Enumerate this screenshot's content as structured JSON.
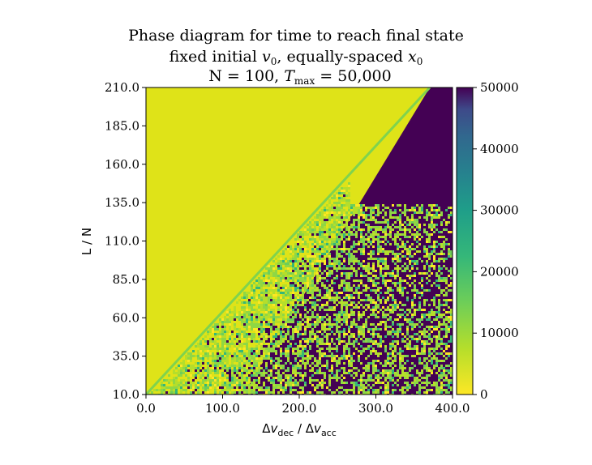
{
  "chart_data": {
    "type": "heatmap",
    "title_lines": [
      "Phase diagram for time to reach final state",
      "fixed initial v0, equally-spaced x0",
      "N = 100, Tmax = 50,000"
    ],
    "xlabel": "Δv_dec / Δv_acc",
    "ylabel": "L / N",
    "xlim": [
      0,
      400
    ],
    "ylim": [
      10,
      210
    ],
    "x_ticks": [
      "0.0",
      "100.0",
      "200.0",
      "300.0",
      "400.0"
    ],
    "y_ticks": [
      "10.0",
      "35.0",
      "60.0",
      "85.0",
      "110.0",
      "135.0",
      "160.0",
      "185.0",
      "210.0"
    ],
    "colorbar": {
      "min": 0,
      "max": 50000,
      "ticks": [
        "0",
        "10000",
        "20000",
        "30000",
        "40000",
        "50000"
      ],
      "colormap": "viridis"
    },
    "regions": [
      {
        "description": "above boundary line",
        "value_approx": 3500
      },
      {
        "description": "below boundary, noisy transition",
        "value_range": [
          0,
          50000
        ]
      },
      {
        "description": "upper-right triangle",
        "value_approx": 50000
      }
    ],
    "boundary": {
      "x": [
        0,
        370
      ],
      "y": [
        10,
        210
      ]
    }
  }
}
